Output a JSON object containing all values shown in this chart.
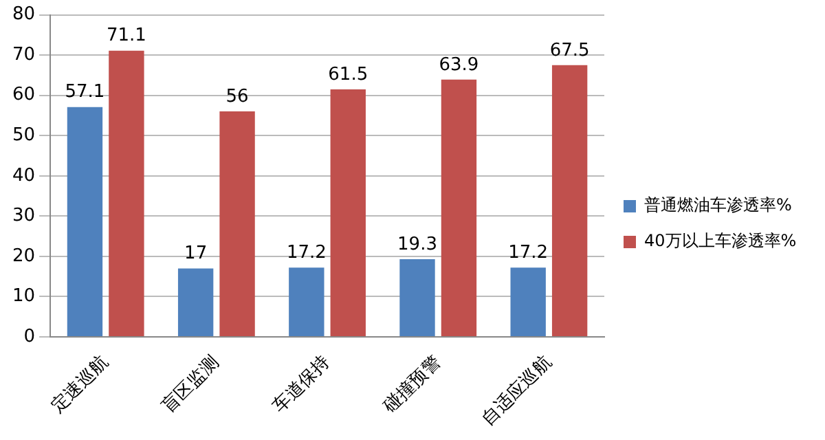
{
  "chart_data": {
    "type": "bar",
    "categories": [
      "定速巡航",
      "盲区监测",
      "车道保持",
      "碰撞预警",
      "自适应巡航"
    ],
    "series": [
      {
        "name": "普通燃油车渗透率%",
        "color": "#4f81bd",
        "values": [
          57.1,
          17,
          17.2,
          19.3,
          17.2
        ]
      },
      {
        "name": "40万以上车渗透率%",
        "color": "#c0504d",
        "values": [
          71.1,
          56,
          61.5,
          63.9,
          67.5
        ]
      }
    ],
    "ylim": [
      0,
      80
    ],
    "yticks": [
      0,
      10,
      20,
      30,
      40,
      50,
      60,
      70,
      80
    ],
    "grid": "y",
    "legend": "right",
    "data_labels": true
  }
}
